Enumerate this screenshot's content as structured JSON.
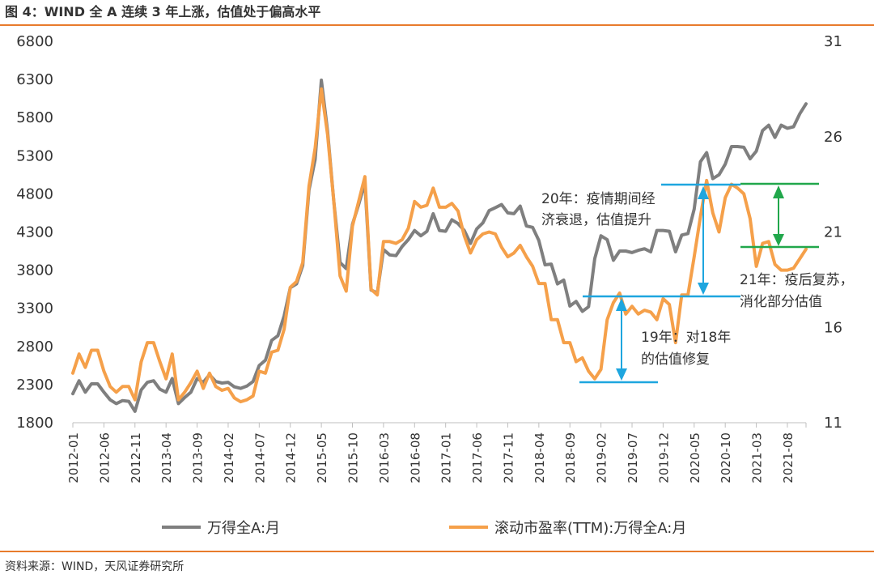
{
  "header": {
    "title": "图 4：WIND 全 A 连续 3 年上涨，估值处于偏高水平"
  },
  "footer": {
    "source": "资料来源：WIND，天风证券研究所"
  },
  "colors": {
    "accent": "#E87B2C",
    "index_line": "#7F7F7F",
    "pe_line": "#F5A04A",
    "blue": "#1EA6DF",
    "green": "#21A74B"
  },
  "chart_data": {
    "type": "line",
    "title": "",
    "xlabel": "",
    "ylabel": "",
    "y_left": {
      "lim": [
        1800,
        6800
      ],
      "ticks": [
        "6800",
        "6300",
        "5800",
        "5300",
        "4800",
        "4300",
        "3800",
        "3300",
        "2800",
        "2300",
        "1800"
      ]
    },
    "y_right": {
      "lim": [
        11,
        31
      ],
      "ticks": [
        "31",
        "26",
        "21",
        "16",
        "11"
      ]
    },
    "x_start": "2012-01",
    "x_tick_labels": [
      "2012-01",
      "2012-06",
      "2012-11",
      "2013-04",
      "2013-09",
      "2014-02",
      "2014-07",
      "2014-12",
      "2015-05",
      "2015-10",
      "2016-03",
      "2016-08",
      "2017-01",
      "2017-06",
      "2017-11",
      "2018-04",
      "2018-09",
      "2019-02",
      "2019-07",
      "2019-12",
      "2020-05",
      "2020-10",
      "2021-03",
      "2021-08"
    ],
    "legend": {
      "position": "bottom"
    },
    "series": [
      {
        "name": "万得全A:月",
        "axis": "left",
        "values": [
          2180,
          2350,
          2200,
          2310,
          2310,
          2200,
          2100,
          2050,
          2090,
          2080,
          1950,
          2230,
          2330,
          2350,
          2240,
          2200,
          2380,
          2050,
          2130,
          2200,
          2380,
          2330,
          2430,
          2340,
          2320,
          2330,
          2270,
          2250,
          2280,
          2340,
          2550,
          2620,
          2880,
          2940,
          3200,
          3570,
          3620,
          3860,
          4850,
          5250,
          6290,
          5620,
          4700,
          3900,
          3820,
          4400,
          4660,
          4950,
          3540,
          3500,
          4070,
          4000,
          3990,
          4110,
          4200,
          4320,
          4250,
          4310,
          4540,
          4320,
          4310,
          4460,
          4410,
          4320,
          4150,
          4340,
          4420,
          4580,
          4620,
          4660,
          4550,
          4540,
          4640,
          4380,
          4360,
          4190,
          3870,
          3880,
          3620,
          3670,
          3330,
          3390,
          3260,
          3320,
          3950,
          4250,
          4200,
          3930,
          4050,
          4050,
          4030,
          4060,
          4080,
          4040,
          4320,
          4320,
          4310,
          4040,
          4260,
          4280,
          4600,
          5220,
          5340,
          5000,
          5050,
          5190,
          5420,
          5420,
          5410,
          5260,
          5360,
          5630,
          5700,
          5540,
          5700,
          5660,
          5680,
          5850,
          5980
        ]
      },
      {
        "name": "滚动市盈率(TTM):万得全A:月",
        "axis": "right",
        "values": [
          13.6,
          14.6,
          13.9,
          14.8,
          14.8,
          13.7,
          12.9,
          12.6,
          12.9,
          12.9,
          12.2,
          14.2,
          15.2,
          15.2,
          14.2,
          13.3,
          14.6,
          12.2,
          12.6,
          13.1,
          13.7,
          12.8,
          13.6,
          12.9,
          12.7,
          12.8,
          12.3,
          12.1,
          12.2,
          12.4,
          13.7,
          13.6,
          14.7,
          14.8,
          15.9,
          18.1,
          18.4,
          19.4,
          23.4,
          25.4,
          28.5,
          26.1,
          22.6,
          18.7,
          17.9,
          21.3,
          22.6,
          23.9,
          18.0,
          17.7,
          20.5,
          20.5,
          20.4,
          20.6,
          21.2,
          22.6,
          22.3,
          22.4,
          23.3,
          22.3,
          22.3,
          22.5,
          22.1,
          20.8,
          19.9,
          20.6,
          20.9,
          21.0,
          20.9,
          20.2,
          19.7,
          19.9,
          20.3,
          19.7,
          19.2,
          18.3,
          18.3,
          16.4,
          16.4,
          15.2,
          15.2,
          14.2,
          14.4,
          13.7,
          13.3,
          13.8,
          16.4,
          17.3,
          17.8,
          16.7,
          17.1,
          16.7,
          16.9,
          16.8,
          16.4,
          17.5,
          17.2,
          15.2,
          17.7,
          17.7,
          19.7,
          21.8,
          23.7,
          22.0,
          21.0,
          22.8,
          23.5,
          23.3,
          23.0,
          21.7,
          19.2,
          20.4,
          20.5,
          19.3,
          19.0,
          19.0,
          19.1,
          19.6,
          20.1
        ]
      }
    ],
    "annotations": [
      {
        "text1": "20年：疫情期间经",
        "text2": "济衰退，估值提升"
      },
      {
        "text1": "21年：疫后复苏，",
        "text2": "消化部分估值"
      },
      {
        "text1": "19年：对18年",
        "text2": "的估值修复"
      }
    ]
  }
}
